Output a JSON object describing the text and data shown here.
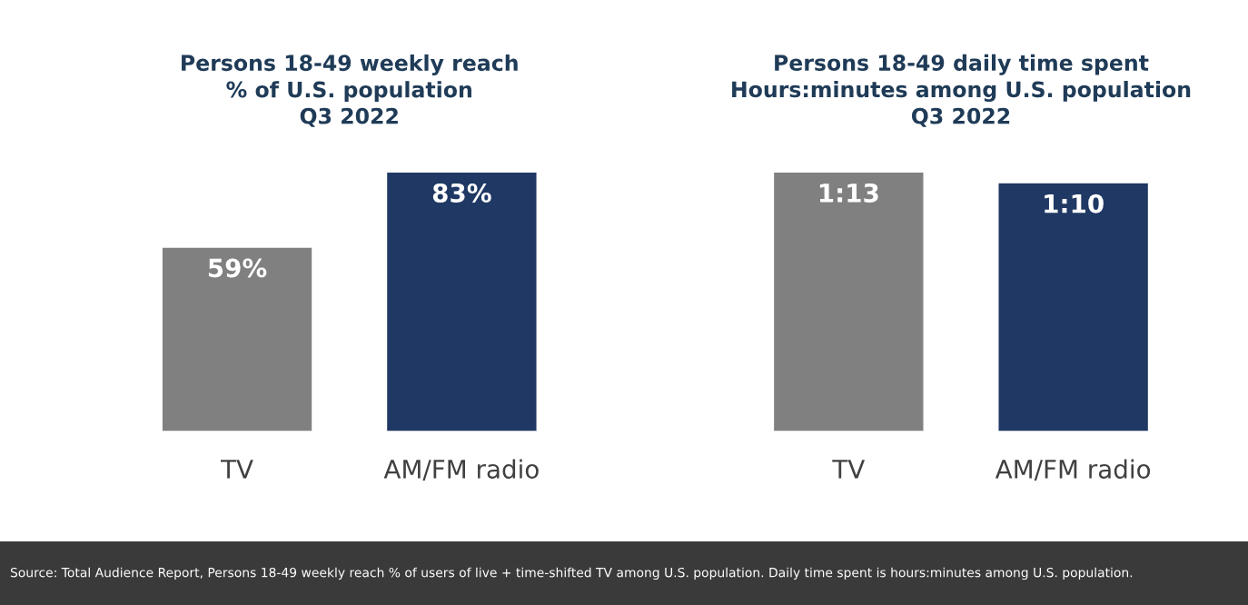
{
  "chart_data": [
    {
      "type": "bar",
      "title": "Persons 18-49 weekly reach\n% of U.S. population\nQ3 2022",
      "categories": [
        "TV",
        "AM/FM radio"
      ],
      "values": [
        59,
        83
      ],
      "colors": [
        "#808080",
        "#1f3864"
      ],
      "value_labels": [
        "59%",
        "83%"
      ],
      "tick_labels": "x",
      "grid": false,
      "legend": false
    },
    {
      "type": "bar",
      "title": "Persons 18-49 daily time spent\nHours:minutes among U.S. population\nQ3 2022",
      "categories": [
        "TV",
        "AM/FM radio"
      ],
      "values": [
        73,
        70
      ],
      "colors": [
        "#808080",
        "#1f3864"
      ],
      "value_labels": [
        "1:13",
        "1:10"
      ],
      "tick_labels": "x",
      "grid": false,
      "legend": false,
      "annotations": [
        "Source: Total Audience Report, Persons 18-49 weekly reach % of users of live + time-shifted TV among U.S. population. Daily time spent is hours:minutes among U.S. population."
      ]
    }
  ]
}
